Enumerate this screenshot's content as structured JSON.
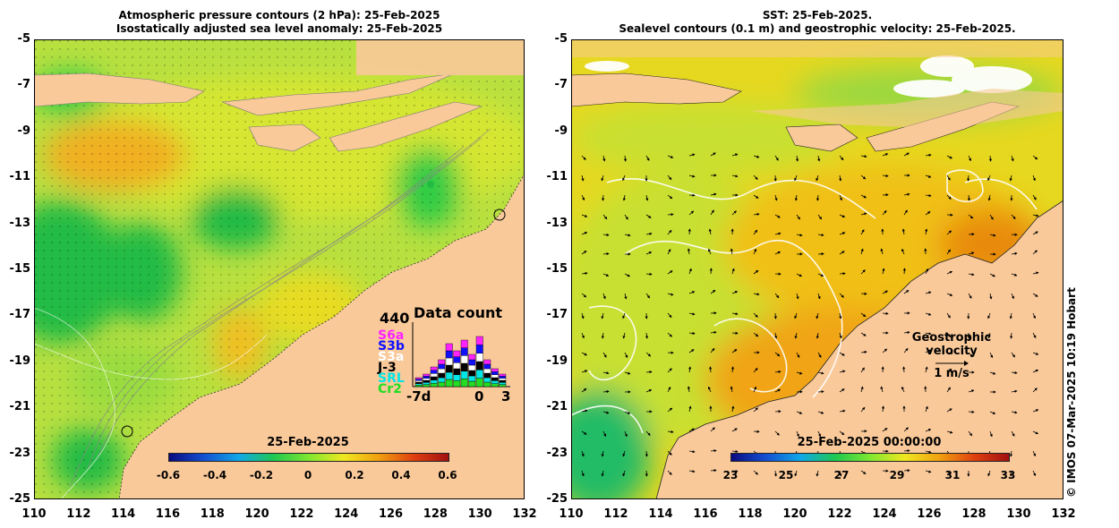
{
  "left_title": {
    "line1": "Atmospheric pressure contours (2 hPa): 25-Feb-2025",
    "line2": "Isostatically adjusted sea level anomaly: 25-Feb-2025"
  },
  "right_title": {
    "line1": "SST: 25-Feb-2025.",
    "line2": "Sealevel contours (0.1 m) and geostrophic velocity: 25-Feb-2025."
  },
  "y_ticks": [
    "-5",
    "-7",
    "-9",
    "-11",
    "-13",
    "-15",
    "-17",
    "-19",
    "-21",
    "-23",
    "-25"
  ],
  "x_ticks": [
    "110",
    "112",
    "114",
    "116",
    "118",
    "120",
    "122",
    "124",
    "126",
    "128",
    "130",
    "132"
  ],
  "left_colorbar": {
    "title": "25-Feb-2025",
    "labels": [
      "-0.6",
      "-0.4",
      "-0.2",
      "0",
      "0.2",
      "0.4",
      "0.6"
    ]
  },
  "right_colorbar": {
    "title": "25-Feb-2025 00:00:00",
    "labels": [
      "23",
      "25",
      "27",
      "29",
      "31",
      "33"
    ]
  },
  "inset": {
    "title": "Data count",
    "max_label": "440",
    "x_start": "-7d",
    "x_zero": "0",
    "x_end": "3",
    "satellites": [
      {
        "name": "S6a",
        "color": "#ff22ff"
      },
      {
        "name": "S3b",
        "color": "#1010ff"
      },
      {
        "name": "S3a",
        "color": "#ffffff"
      },
      {
        "name": "J-3",
        "color": "#000000"
      },
      {
        "name": "SRL",
        "color": "#00e5e5"
      },
      {
        "name": "Cr2",
        "color": "#22dd22"
      }
    ]
  },
  "velocity_legend": {
    "label": "Geostrophic velocity",
    "scale": "1 m/s"
  },
  "copyright": "© IMOS 07-Mar-2025 10:19 Hobart",
  "colors": {
    "land": "#f9c99a",
    "sla_scale": [
      "#0a0a80",
      "#1450d2",
      "#10a8e8",
      "#20c850",
      "#7fe830",
      "#f0e820",
      "#f0a010",
      "#e04010",
      "#a01010"
    ],
    "sst_scale": [
      "#0a0a80",
      "#1450d2",
      "#10a8e8",
      "#20c850",
      "#7fe830",
      "#f0e820",
      "#f0a010",
      "#e04010",
      "#a01010"
    ]
  }
}
